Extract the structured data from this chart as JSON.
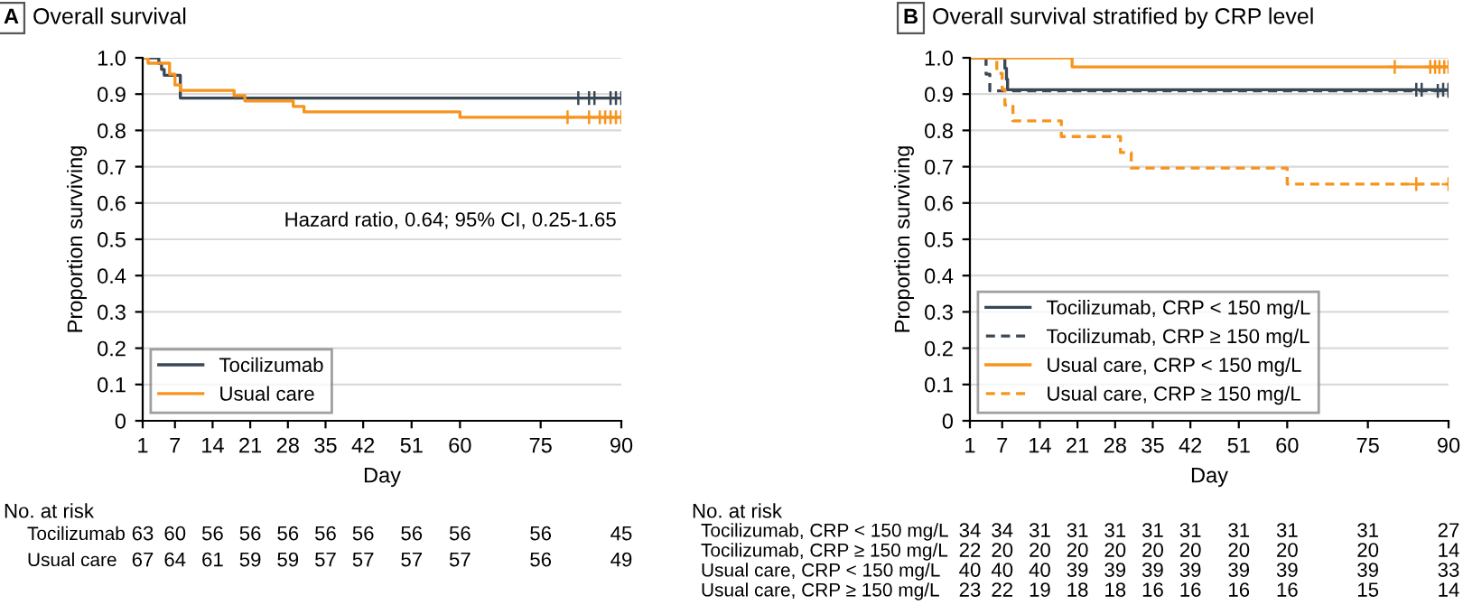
{
  "chart_data": [
    {
      "type": "step",
      "title": "A",
      "subtitle": "Overall survival",
      "xlabel": "Day",
      "ylabel": "Proportion surviving",
      "xlim": [
        1,
        90
      ],
      "ylim": [
        0,
        1
      ],
      "xticks": [
        1,
        7,
        14,
        21,
        28,
        35,
        42,
        51,
        60,
        75,
        90
      ],
      "yticks": [
        0,
        0.1,
        0.2,
        0.3,
        0.4,
        0.5,
        0.6,
        0.7,
        0.8,
        0.9,
        {
          "value": 1,
          "label": "1.0"
        }
      ],
      "grid": "y",
      "legend": "bottom left",
      "annotations": [
        "Hazard ratio, 0.64; 95% CI, 0.25-1.65"
      ],
      "series": [
        {
          "name": "Tocilizumab",
          "type": "step",
          "color": "#3a4856",
          "line_style": "solid",
          "x": [
            1,
            4,
            4.5,
            5,
            8,
            90
          ],
          "values": [
            1,
            0.984,
            0.968,
            0.952,
            0.889,
            0.889
          ]
        },
        {
          "name": "Usual care",
          "type": "step",
          "color": "#f7941d",
          "line_style": "solid",
          "x": [
            1,
            2,
            6,
            7,
            8,
            18,
            20,
            29,
            31,
            60,
            90
          ],
          "values": [
            1,
            0.985,
            0.955,
            0.925,
            0.91,
            0.896,
            0.881,
            0.866,
            0.851,
            0.836,
            0.836
          ]
        },
        {
          "type": "scatter",
          "marker": "cross",
          "color": "#3a4856",
          "x": [
            82,
            84,
            85,
            88,
            89,
            90
          ],
          "values": [
            0.889,
            0.889,
            0.889,
            0.889,
            0.889,
            0.889
          ]
        },
        {
          "type": "scatter",
          "marker": "cross",
          "color": "#f7941d",
          "x": [
            80,
            84,
            86,
            87,
            88,
            89,
            90
          ],
          "values": [
            0.836,
            0.836,
            0.836,
            0.836,
            0.836,
            0.836,
            0.836
          ]
        }
      ]
    },
    {
      "type": "other",
      "title": "No. at risk",
      "annotations": [
        "Tocilizumab",
        "63",
        "60",
        "56",
        "56",
        "56",
        "56",
        "56",
        "56",
        "56",
        "56",
        "45",
        "Usual care",
        "67",
        "64",
        "61",
        "59",
        "59",
        "57",
        "57",
        "57",
        "57",
        "56",
        "49"
      ]
    },
    {
      "type": "step",
      "title": "B",
      "subtitle": "Overall survival stratified by CRP level",
      "xlabel": "Day",
      "ylabel": "Proportion surviving",
      "xlim": [
        1,
        90
      ],
      "ylim": [
        0,
        1
      ],
      "xticks": [
        1,
        7,
        14,
        21,
        28,
        35,
        42,
        51,
        60,
        75,
        90
      ],
      "yticks": [
        0,
        0.1,
        0.2,
        0.3,
        0.4,
        0.5,
        0.6,
        0.7,
        0.8,
        0.9,
        {
          "value": 1,
          "label": "1.0"
        }
      ],
      "grid": "y",
      "legend": "bottom left",
      "series": [
        {
          "name": "Tocilizumab, CRP < 150 mg/L",
          "type": "step",
          "color": "#3a4856",
          "line_style": "solid",
          "x": [
            1,
            7.5,
            7.8,
            8,
            90
          ],
          "values": [
            1,
            0.971,
            0.941,
            0.912,
            0.912
          ]
        },
        {
          "name": "Tocilizumab, CRP ≥ 150 mg/L",
          "type": "step",
          "color": "#3a4856",
          "line_style": "dashed",
          "x": [
            1,
            4,
            4.7,
            90
          ],
          "values": [
            1,
            0.955,
            0.909,
            0.909
          ]
        },
        {
          "name": "Usual care, CRP < 150 mg/L",
          "type": "step",
          "color": "#f7941d",
          "line_style": "solid",
          "x": [
            1,
            20,
            90
          ],
          "values": [
            1,
            0.975,
            0.975
          ]
        },
        {
          "name": "Usual care, CRP ≥ 150 mg/L",
          "type": "step",
          "color": "#f7941d",
          "line_style": "dashed",
          "x": [
            1,
            6,
            7,
            7.5,
            9,
            18,
            29,
            31,
            60,
            90
          ],
          "values": [
            1,
            0.957,
            0.913,
            0.87,
            0.826,
            0.783,
            0.739,
            0.696,
            0.652,
            0.652
          ]
        },
        {
          "type": "scatter",
          "marker": "cross",
          "color": "#3a4856",
          "x": [
            84,
            85,
            89,
            90
          ],
          "values": [
            0.912,
            0.912,
            0.912,
            0.912
          ]
        },
        {
          "type": "scatter",
          "marker": "cross",
          "color": "#3a4856",
          "x": [
            88,
            90
          ],
          "values": [
            0.909,
            0.909
          ]
        },
        {
          "type": "scatter",
          "marker": "cross",
          "color": "#f7941d",
          "x": [
            80,
            86.6,
            87.5,
            88.3,
            89.2,
            90
          ],
          "values": [
            0.975,
            0.975,
            0.975,
            0.975,
            0.975,
            0.975
          ]
        },
        {
          "type": "scatter",
          "marker": "cross",
          "color": "#f7941d",
          "x": [
            84,
            90
          ],
          "values": [
            0.652,
            0.652
          ]
        }
      ]
    },
    {
      "type": "other",
      "title": "No. at risk",
      "annotations": [
        "Tocilizumab, CRP < 150 mg/L",
        "34",
        "34",
        "31",
        "31",
        "31",
        "31",
        "31",
        "31",
        "31",
        "31",
        "27",
        "Tocilizumab, CRP ≥ 150 mg/L",
        "22",
        "20",
        "20",
        "20",
        "20",
        "20",
        "20",
        "20",
        "20",
        "20",
        "14",
        "Usual care, CRP < 150 mg/L",
        "40",
        "40",
        "40",
        "39",
        "39",
        "39",
        "39",
        "39",
        "39",
        "39",
        "33",
        "Usual care, CRP ≥ 150 mg/L",
        "23",
        "22",
        "19",
        "18",
        "18",
        "16",
        "16",
        "16",
        "16",
        "15",
        "14"
      ]
    }
  ]
}
